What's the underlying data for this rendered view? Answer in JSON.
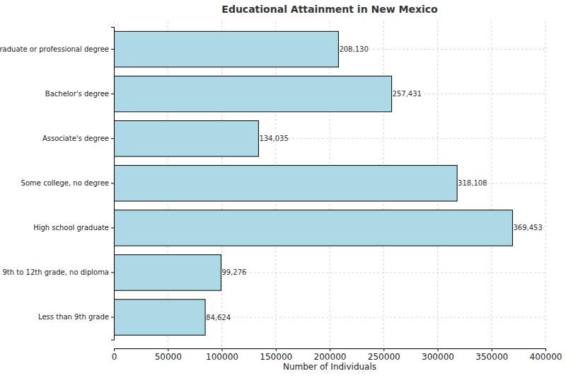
{
  "chart_data": {
    "type": "bar",
    "title": "Educational Attainment in New Mexico",
    "orientation": "horizontal",
    "x_label": "Number of Individuals",
    "categories": [
      "Graduate or professional degree",
      "Bachelor's degree",
      "Associate's degree",
      "Some college, no degree",
      "High school graduate",
      "9th to 12th grade, no diploma",
      "Less than 9th grade"
    ],
    "values": [
      208130,
      257431,
      134035,
      318108,
      369453,
      99276,
      84624
    ],
    "value_labels": [
      "208,130",
      "257,431",
      "134,035",
      "318,108",
      "369,453",
      "99,276",
      "84,624"
    ],
    "data_labels": true,
    "color": "#add8e6",
    "xlim": [
      0,
      400000
    ],
    "xticks": [
      0,
      50000,
      100000,
      150000,
      200000,
      250000,
      300000,
      350000,
      400000
    ],
    "grid": true
  }
}
